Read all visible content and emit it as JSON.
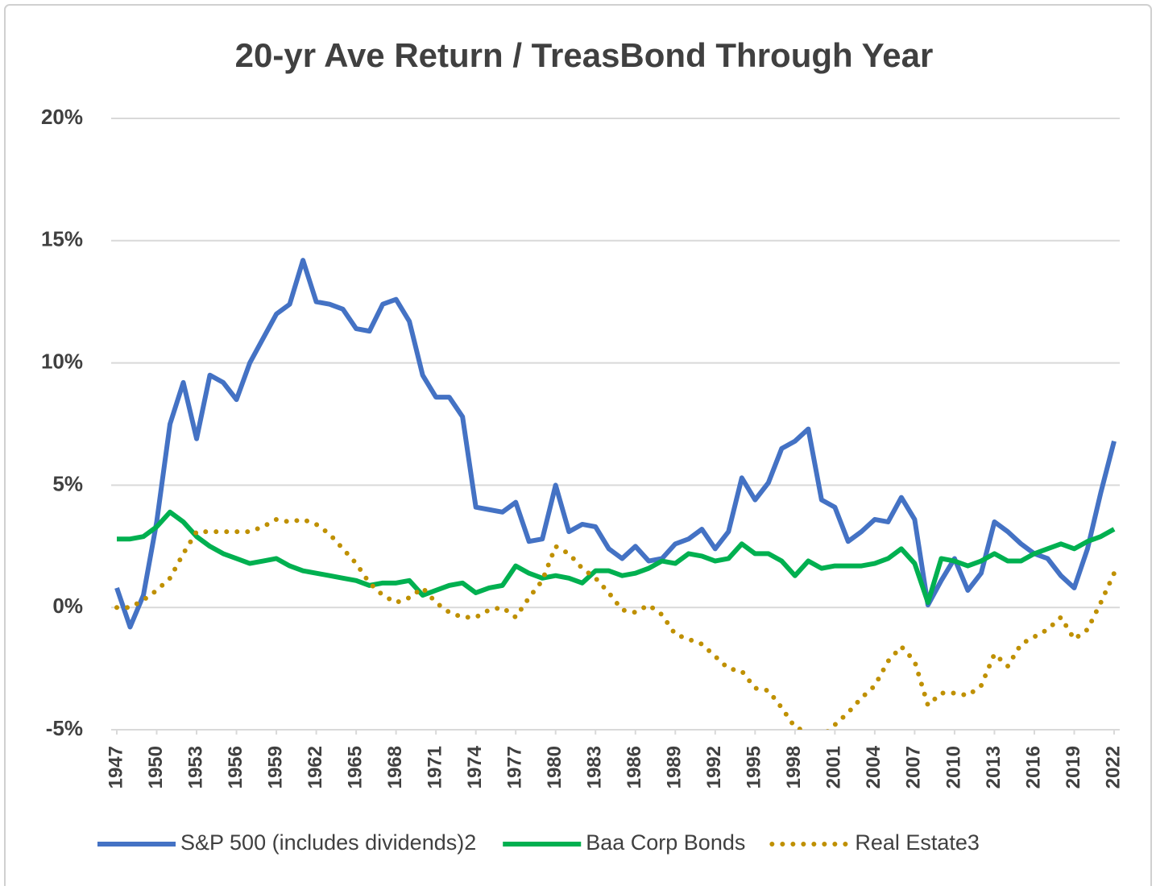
{
  "chart_data": {
    "type": "line",
    "title": "20-yr Ave Return / TreasBond Through Year",
    "x": [
      1947,
      1948,
      1949,
      1950,
      1951,
      1952,
      1953,
      1954,
      1955,
      1956,
      1957,
      1958,
      1959,
      1960,
      1961,
      1962,
      1963,
      1964,
      1965,
      1966,
      1967,
      1968,
      1969,
      1970,
      1971,
      1972,
      1973,
      1974,
      1975,
      1976,
      1977,
      1978,
      1979,
      1980,
      1981,
      1982,
      1983,
      1984,
      1985,
      1986,
      1987,
      1988,
      1989,
      1990,
      1991,
      1992,
      1993,
      1994,
      1995,
      1996,
      1997,
      1998,
      1999,
      2000,
      2001,
      2002,
      2003,
      2004,
      2005,
      2006,
      2007,
      2008,
      2009,
      2010,
      2011,
      2012,
      2013,
      2014,
      2015,
      2016,
      2017,
      2018,
      2019,
      2020,
      2021,
      2022
    ],
    "xlim": [
      1947,
      2022
    ],
    "xticks": [
      1947,
      1950,
      1953,
      1956,
      1959,
      1962,
      1965,
      1968,
      1971,
      1974,
      1977,
      1980,
      1983,
      1986,
      1989,
      1992,
      1995,
      1998,
      2001,
      2004,
      2007,
      2010,
      2013,
      2016,
      2019,
      2022
    ],
    "ylim": [
      -5,
      20
    ],
    "yticks": [
      {
        "value": -5,
        "label": "-5%"
      },
      {
        "value": 0,
        "label": "0%"
      },
      {
        "value": 5,
        "label": "5%"
      },
      {
        "value": 10,
        "label": "10%"
      },
      {
        "value": 15,
        "label": "15%"
      },
      {
        "value": 20,
        "label": "20%"
      }
    ],
    "grid": true,
    "legend": "bottom",
    "series": [
      {
        "name": "S&P 500 (includes dividends)2",
        "color": "#4472c4",
        "style": "solid",
        "values": [
          0.8,
          -0.8,
          0.5,
          3.5,
          7.5,
          9.2,
          6.9,
          9.5,
          9.2,
          8.5,
          10.0,
          11.0,
          12.0,
          12.4,
          14.2,
          12.5,
          12.4,
          12.2,
          11.4,
          11.3,
          12.4,
          12.6,
          11.7,
          9.5,
          8.6,
          8.6,
          7.8,
          4.1,
          4.0,
          3.9,
          4.3,
          2.7,
          2.8,
          5.0,
          3.1,
          3.4,
          3.3,
          2.4,
          2.0,
          2.5,
          1.9,
          2.0,
          2.6,
          2.8,
          3.2,
          2.4,
          3.1,
          5.3,
          4.4,
          5.1,
          6.5,
          6.8,
          7.3,
          4.4,
          4.1,
          2.7,
          3.1,
          3.6,
          3.5,
          4.5,
          3.6,
          0.1,
          1.1,
          2.0,
          0.7,
          1.4,
          3.5,
          3.1,
          2.6,
          2.2,
          2.0,
          1.3,
          0.8,
          2.4,
          4.7,
          6.8
        ]
      },
      {
        "name": "Baa Corp Bonds",
        "color": "#00b050",
        "style": "solid",
        "values": [
          2.8,
          2.8,
          2.9,
          3.3,
          3.9,
          3.5,
          2.9,
          2.5,
          2.2,
          2.0,
          1.8,
          1.9,
          2.0,
          1.7,
          1.5,
          1.4,
          1.3,
          1.2,
          1.1,
          0.9,
          1.0,
          1.0,
          1.1,
          0.5,
          0.7,
          0.9,
          1.0,
          0.6,
          0.8,
          0.9,
          1.7,
          1.4,
          1.2,
          1.3,
          1.2,
          1.0,
          1.5,
          1.5,
          1.3,
          1.4,
          1.6,
          1.9,
          1.8,
          2.2,
          2.1,
          1.9,
          2.0,
          2.6,
          2.2,
          2.2,
          1.9,
          1.3,
          1.9,
          1.6,
          1.7,
          1.7,
          1.7,
          1.8,
          2.0,
          2.4,
          1.8,
          0.2,
          2.0,
          1.9,
          1.7,
          1.9,
          2.2,
          1.9,
          1.9,
          2.2,
          2.4,
          2.6,
          2.4,
          2.7,
          2.9,
          3.2
        ]
      },
      {
        "name": "Real Estate3",
        "color": "#bf9000",
        "style": "dotted",
        "values": [
          0.0,
          0.0,
          0.3,
          0.7,
          1.2,
          2.2,
          3.1,
          3.1,
          3.1,
          3.1,
          3.1,
          3.3,
          3.6,
          3.5,
          3.6,
          3.4,
          3.0,
          2.4,
          1.8,
          1.0,
          0.5,
          0.2,
          0.4,
          0.8,
          0.2,
          -0.2,
          -0.4,
          -0.4,
          -0.1,
          0.0,
          -0.4,
          0.4,
          1.1,
          2.5,
          2.2,
          1.6,
          1.2,
          0.6,
          -0.1,
          -0.2,
          0.1,
          -0.3,
          -1.1,
          -1.3,
          -1.5,
          -2.0,
          -2.5,
          -2.6,
          -3.3,
          -3.4,
          -4.1,
          -4.9,
          -5.1,
          -5.3,
          -4.8,
          -4.3,
          -3.7,
          -3.2,
          -2.2,
          -1.6,
          -2.2,
          -4.0,
          -3.5,
          -3.5,
          -3.6,
          -3.2,
          -1.9,
          -2.4,
          -1.5,
          -1.2,
          -0.9,
          -0.4,
          -1.3,
          -0.9,
          0.2,
          1.4
        ]
      }
    ]
  }
}
